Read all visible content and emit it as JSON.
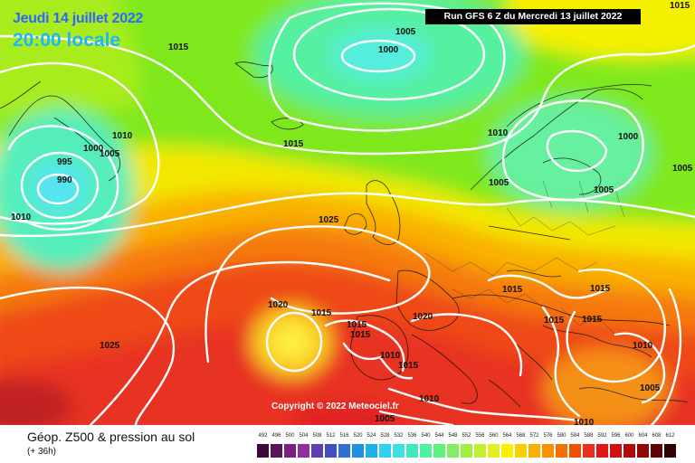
{
  "header": {
    "date_title": "Jeudi 14 juillet 2022",
    "time_title": "20:00 locale",
    "run_info": "Run GFS 6 Z du Mercredi 13 juillet 2022"
  },
  "copyright": "Copyright © 2022 Meteociel.fr",
  "legend": {
    "title": "Géop. Z500 & pression au sol",
    "subtitle": "(+ 36h)",
    "scale_values": [
      "492",
      "496",
      "500",
      "504",
      "508",
      "512",
      "516",
      "520",
      "524",
      "528",
      "532",
      "536",
      "540",
      "544",
      "548",
      "552",
      "556",
      "560",
      "564",
      "568",
      "572",
      "576",
      "580",
      "584",
      "588",
      "592",
      "596",
      "600",
      "604",
      "608",
      "612"
    ],
    "scale_colors": [
      "#3b0a3a",
      "#5a1459",
      "#7a2080",
      "#9030a0",
      "#6040b0",
      "#4050c0",
      "#3070d0",
      "#2090e0",
      "#20b0e8",
      "#30d0f0",
      "#40e0e0",
      "#40e8c0",
      "#50f0a0",
      "#60f080",
      "#80f060",
      "#a0f040",
      "#c0f030",
      "#e0f020",
      "#f8f000",
      "#f8d000",
      "#f8b000",
      "#f89000",
      "#f87000",
      "#f05000",
      "#e83020",
      "#e01818",
      "#d01010",
      "#b00a0a",
      "#900808",
      "#600505",
      "#300202"
    ],
    "top_right_fragment": "1015"
  },
  "isobar_labels": [
    {
      "text": "1015"
    },
    {
      "text": "1005"
    },
    {
      "text": "1000"
    },
    {
      "text": "1010"
    },
    {
      "text": "1005"
    },
    {
      "text": "1000"
    },
    {
      "text": "995"
    },
    {
      "text": "990"
    },
    {
      "text": "1010"
    },
    {
      "text": "1015"
    },
    {
      "text": "1010"
    },
    {
      "text": "1000"
    },
    {
      "text": "1005"
    },
    {
      "text": "1005"
    },
    {
      "text": "1005"
    },
    {
      "text": "1025"
    },
    {
      "text": "1015"
    },
    {
      "text": "1015"
    },
    {
      "text": "1015"
    },
    {
      "text": "1015"
    },
    {
      "text": "1020"
    },
    {
      "text": "1015"
    },
    {
      "text": "1015"
    },
    {
      "text": "1020"
    },
    {
      "text": "1015"
    },
    {
      "text": "1010"
    },
    {
      "text": "1015"
    },
    {
      "text": "1010"
    },
    {
      "text": "1025"
    },
    {
      "text": "1010"
    },
    {
      "text": "1005"
    },
    {
      "text": "1005"
    },
    {
      "text": "1010"
    }
  ]
}
